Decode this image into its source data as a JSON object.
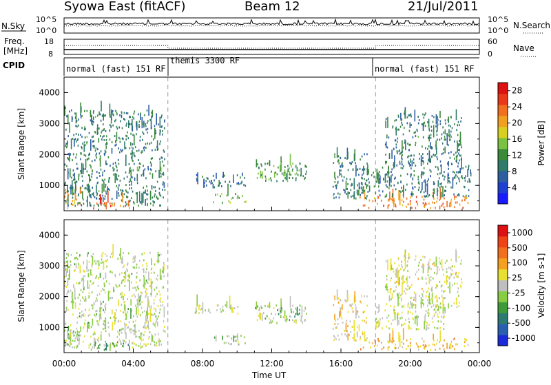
{
  "header": {
    "station": "Syowa East (fitACF)",
    "beam": "Beam 12",
    "date": "21/Jul/2011"
  },
  "noise_panel": {
    "left_label": "N.Sky",
    "right_label": "N.Search",
    "left_ticks": [
      "10^5",
      "10^0"
    ],
    "right_ticks": [
      "10^5",
      "10^0"
    ]
  },
  "freq_panel": {
    "left_label_1": "Freq.",
    "left_label_2": "[MHz]",
    "right_label": "Nave",
    "left_ticks": [
      "18",
      "8"
    ],
    "right_ticks": [
      "60",
      "0"
    ]
  },
  "cpid_panel": {
    "label": "CPID",
    "segments": [
      "normal (fast) 151 RF",
      "themis 3300 RF",
      "normal (fast) 151 RF"
    ]
  },
  "colors": {
    "power": [
      "#1a1aff",
      "#1f3fd1",
      "#2d5fa0",
      "#2f7a6a",
      "#3a8a3a",
      "#7cc242",
      "#d8d020",
      "#f0a020",
      "#f07020",
      "#e83a1a",
      "#dd1111"
    ],
    "velocity": [
      "#1a2ad8",
      "#2a5fb0",
      "#2e7a72",
      "#3f9a3a",
      "#88cc44",
      "#bfbfbf",
      "#e8e030",
      "#f5a020",
      "#f07020",
      "#ee4418",
      "#dd1111"
    ]
  },
  "chart_data": [
    {
      "type": "heatmap",
      "title": "Power",
      "xlabel": "Time UT",
      "ylabel": "Slant Range [km]",
      "x_ticks": [
        "00:00",
        "04:00",
        "08:00",
        "12:00",
        "16:00",
        "20:00",
        "00:00"
      ],
      "xlim": [
        0,
        24
      ],
      "y_ticks": [
        "1000",
        "2000",
        "3000",
        "4000"
      ],
      "ylim": [
        180,
        4500
      ],
      "colorbar_label": "Power [dB]",
      "colorbar_ticks": [
        "4",
        "8",
        "12",
        "16",
        "20",
        "24",
        "28"
      ],
      "colorbar_range": [
        0,
        30
      ],
      "regions": [
        {
          "t": [
            0.0,
            1.0
          ],
          "r": [
            200,
            900
          ],
          "v": 20
        },
        {
          "t": [
            0.0,
            5.8
          ],
          "r": [
            300,
            3400
          ],
          "v": 10
        },
        {
          "t": [
            1.5,
            3.8
          ],
          "r": [
            220,
            450
          ],
          "v": 24
        },
        {
          "t": [
            7.5,
            10.5
          ],
          "r": [
            900,
            1300
          ],
          "v": 8
        },
        {
          "t": [
            8.5,
            10.5
          ],
          "r": [
            400,
            700
          ],
          "v": 14
        },
        {
          "t": [
            11.0,
            14.0
          ],
          "r": [
            1100,
            1700
          ],
          "v": 12
        },
        {
          "t": [
            12.2,
            13.6
          ],
          "r": [
            1300,
            1600
          ],
          "v": 14
        },
        {
          "t": [
            15.5,
            17.5
          ],
          "r": [
            500,
            2000
          ],
          "v": 10
        },
        {
          "t": [
            17.0,
            23.5
          ],
          "r": [
            220,
            600
          ],
          "v": 22
        },
        {
          "t": [
            17.0,
            23.5
          ],
          "r": [
            600,
            1600
          ],
          "v": 9
        },
        {
          "t": [
            18.5,
            23.0
          ],
          "r": [
            1600,
            3300
          ],
          "v": 10
        }
      ]
    },
    {
      "type": "heatmap",
      "title": "Velocity",
      "xlabel": "Time UT",
      "ylabel": "Slant Range [km]",
      "x_ticks": [
        "00:00",
        "04:00",
        "08:00",
        "12:00",
        "16:00",
        "20:00",
        "00:00"
      ],
      "xlim": [
        0,
        24
      ],
      "y_ticks": [
        "1000",
        "2000",
        "3000",
        "4000"
      ],
      "ylim": [
        180,
        4500
      ],
      "colorbar_label": "Velocity [m s-1]",
      "colorbar_ticks": [
        "1000",
        "500",
        "100",
        "25",
        "-25",
        "-100",
        "-500",
        "-1000"
      ],
      "colorbar_range": [
        -1200,
        1200
      ],
      "regions": [
        {
          "t": [
            0.0,
            1.0
          ],
          "r": [
            200,
            900
          ],
          "v": -200
        },
        {
          "t": [
            0.0,
            5.8
          ],
          "r": [
            300,
            3400
          ],
          "v": -50
        },
        {
          "t": [
            1.5,
            3.8
          ],
          "r": [
            220,
            450
          ],
          "v": -300
        },
        {
          "t": [
            7.5,
            10.5
          ],
          "r": [
            1400,
            1700
          ],
          "v": 0
        },
        {
          "t": [
            8.5,
            10.5
          ],
          "r": [
            400,
            700
          ],
          "v": -100
        },
        {
          "t": [
            11.0,
            14.0
          ],
          "r": [
            1100,
            1700
          ],
          "v": -80
        },
        {
          "t": [
            12.2,
            13.6
          ],
          "r": [
            1300,
            1600
          ],
          "v": -400
        },
        {
          "t": [
            15.5,
            17.5
          ],
          "r": [
            500,
            2000
          ],
          "v": 200
        },
        {
          "t": [
            17.0,
            23.5
          ],
          "r": [
            220,
            600
          ],
          "v": 300
        },
        {
          "t": [
            18.0,
            22.0
          ],
          "r": [
            900,
            1700
          ],
          "v": 0
        },
        {
          "t": [
            18.5,
            23.0
          ],
          "r": [
            1600,
            3300
          ],
          "v": 50
        }
      ]
    }
  ]
}
